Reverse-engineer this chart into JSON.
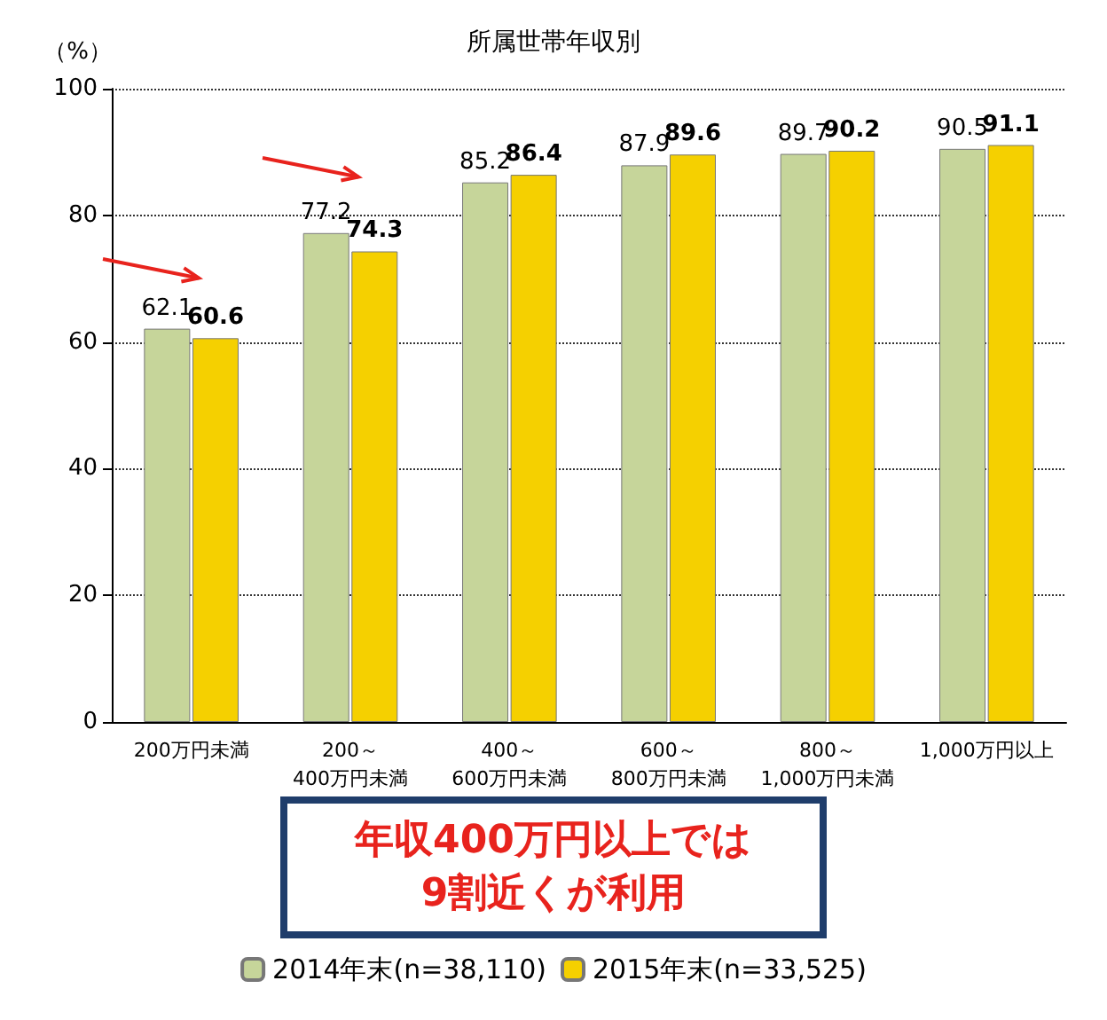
{
  "chart_data": {
    "type": "bar",
    "title": "所属世帯年収別",
    "ylabel": "（%）",
    "categories": [
      "200万円未満",
      "200～\n400万円未満",
      "400～\n600万円未満",
      "600～\n800万円未満",
      "800～\n1,000万円未満",
      "1,000万円以上"
    ],
    "series": [
      {
        "name": "2014年末(n=38,110)",
        "color": "#c6d59a",
        "values": [
          62.1,
          77.2,
          85.2,
          87.9,
          89.7,
          90.5
        ]
      },
      {
        "name": "2015年末(n=33,525)",
        "color": "#f5d000",
        "values": [
          60.6,
          74.3,
          86.4,
          89.6,
          90.2,
          91.1
        ]
      }
    ],
    "ylim": [
      0,
      100
    ],
    "yticks": [
      0,
      20,
      40,
      60,
      80,
      100
    ],
    "grid": "y",
    "legend": "bottom",
    "data_labels": true,
    "annotations": [
      "年収400万円以上では\n9割近くが利用"
    ]
  }
}
